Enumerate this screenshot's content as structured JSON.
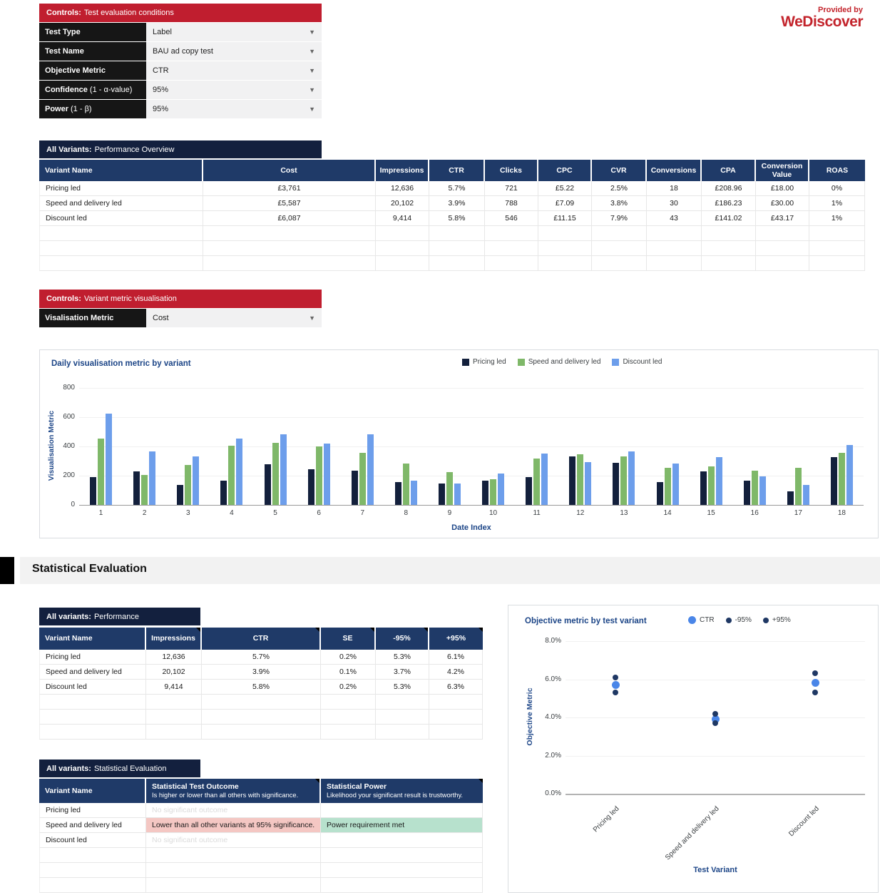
{
  "branding": {
    "provided_by": "Provided by",
    "brand": "WeDiscover",
    "color": "#C3242C"
  },
  "controls_test": {
    "header_prefix": "Controls:",
    "header_rest": "Test evaluation conditions",
    "rows": [
      {
        "label_bold": "Test Type",
        "label_rest": "",
        "value": "Label"
      },
      {
        "label_bold": "Test Name",
        "label_rest": "",
        "value": "BAU ad copy test"
      },
      {
        "label_bold": "Objective Metric",
        "label_rest": "",
        "value": "CTR"
      },
      {
        "label_bold": "Confidence",
        "label_rest": "(1 - α-value)",
        "value": "95%"
      },
      {
        "label_bold": "Power",
        "label_rest": "(1 - β)",
        "value": "95%"
      }
    ]
  },
  "overview": {
    "title_bold": "All Variants:",
    "title_rest": "Performance Overview",
    "columns": [
      "Variant Name",
      "Cost",
      "Impressions",
      "CTR",
      "Clicks",
      "CPC",
      "CVR",
      "Conversions",
      "CPA",
      "Conversion Value",
      "ROAS"
    ],
    "rows": [
      [
        "Pricing led",
        "£3,761",
        "12,636",
        "5.7%",
        "721",
        "£5.22",
        "2.5%",
        "18",
        "£208.96",
        "£18.00",
        "0%"
      ],
      [
        "Speed and delivery led",
        "£5,587",
        "20,102",
        "3.9%",
        "788",
        "£7.09",
        "3.8%",
        "30",
        "£186.23",
        "£30.00",
        "1%"
      ],
      [
        "Discount led",
        "£6,087",
        "9,414",
        "5.8%",
        "546",
        "£11.15",
        "7.9%",
        "43",
        "£141.02",
        "£43.17",
        "1%"
      ]
    ],
    "empty_rows": 3
  },
  "controls_vis": {
    "header_prefix": "Controls:",
    "header_rest": "Variant metric visualisation",
    "rows": [
      {
        "label_bold": "Visalisation Metric",
        "label_rest": "",
        "value": "Cost"
      }
    ]
  },
  "section_header": "Statistical Evaluation",
  "performance": {
    "title_bold": "All variants:",
    "title_rest": "Performance",
    "columns": [
      "Variant Name",
      "Impressions",
      "CTR",
      "SE",
      "-95%",
      "+95%"
    ],
    "rows": [
      [
        "Pricing led",
        "12,636",
        "5.7%",
        "0.2%",
        "5.3%",
        "6.1%"
      ],
      [
        "Speed and delivery led",
        "20,102",
        "3.9%",
        "0.1%",
        "3.7%",
        "4.2%"
      ],
      [
        "Discount led",
        "9,414",
        "5.8%",
        "0.2%",
        "5.3%",
        "6.3%"
      ]
    ],
    "empty_rows": 3
  },
  "evaluation": {
    "title_bold": "All variants:",
    "title_rest": "Statistical Evaluation",
    "columns": [
      {
        "title": "Variant Name",
        "subtitle": ""
      },
      {
        "title": "Statistical Test Outcome",
        "subtitle": "Is higher or lower than all others with significance."
      },
      {
        "title": "Statistical Power",
        "subtitle": "Likelihood your significant result is trustworthy."
      }
    ],
    "rows": [
      {
        "name": "Pricing led",
        "outcome": "No significant outcome",
        "outcome_style": "muted",
        "power": "",
        "power_style": ""
      },
      {
        "name": "Speed and delivery led",
        "outcome": "Lower than all other variants at 95% significance.",
        "outcome_style": "bad",
        "power": "Power requirement met",
        "power_style": "good"
      },
      {
        "name": "Discount led",
        "outcome": "No significant outcome",
        "outcome_style": "muted",
        "power": "",
        "power_style": ""
      }
    ],
    "empty_rows": 3
  },
  "status_colors": {
    "bad_bg": "#F4C7C3",
    "good_bg": "#B7E1CD",
    "muted_text": "#DBDBDB"
  },
  "chart_data": [
    {
      "type": "bar",
      "title": "Daily visualisation metric by variant",
      "xlabel": "Date Index",
      "ylabel": "Visualisation Metric",
      "ylim": [
        0,
        800
      ],
      "yticks": [
        0,
        200,
        400,
        600,
        800
      ],
      "grid": true,
      "legend_position": "top-right",
      "categories": [
        "1",
        "2",
        "3",
        "4",
        "5",
        "6",
        "7",
        "8",
        "9",
        "10",
        "11",
        "12",
        "13",
        "14",
        "15",
        "16",
        "17",
        "18"
      ],
      "series": [
        {
          "name": "Pricing led",
          "color": "#13203C",
          "values": [
            190,
            228,
            138,
            168,
            278,
            242,
            235,
            155,
            148,
            166,
            190,
            332,
            288,
            158,
            228,
            165,
            95,
            326
          ]
        },
        {
          "name": "Speed and delivery led",
          "color": "#7FB869",
          "values": [
            455,
            205,
            275,
            405,
            425,
            400,
            357,
            283,
            225,
            174,
            318,
            345,
            330,
            253,
            264,
            232,
            255,
            358
          ]
        },
        {
          "name": "Discount led",
          "color": "#6D9EEB",
          "values": [
            625,
            368,
            330,
            455,
            485,
            418,
            485,
            165,
            148,
            213,
            352,
            295,
            368,
            285,
            328,
            197,
            135,
            410
          ]
        }
      ]
    },
    {
      "type": "scatter",
      "title": "Objective metric by test variant",
      "xlabel": "Test Variant",
      "ylabel": "Objective Metric",
      "ylim": [
        0,
        8
      ],
      "yticks": [
        0,
        2,
        4,
        6,
        8
      ],
      "ytick_labels": [
        "0.0%",
        "2.0%",
        "4.0%",
        "6.0%",
        "8.0%"
      ],
      "grid": true,
      "legend_position": "top-right",
      "categories": [
        "Pricing led",
        "Speed and delivery led",
        "Discount led"
      ],
      "series": [
        {
          "name": "CTR",
          "color": "#4A86E8",
          "size": 11,
          "values": [
            5.7,
            3.9,
            5.8
          ]
        },
        {
          "name": "-95%",
          "color": "#1F3864",
          "size": 8,
          "values": [
            5.3,
            3.7,
            5.3
          ]
        },
        {
          "name": "+95%",
          "color": "#1F3864",
          "size": 8,
          "values": [
            6.1,
            4.2,
            6.3
          ]
        }
      ]
    }
  ]
}
